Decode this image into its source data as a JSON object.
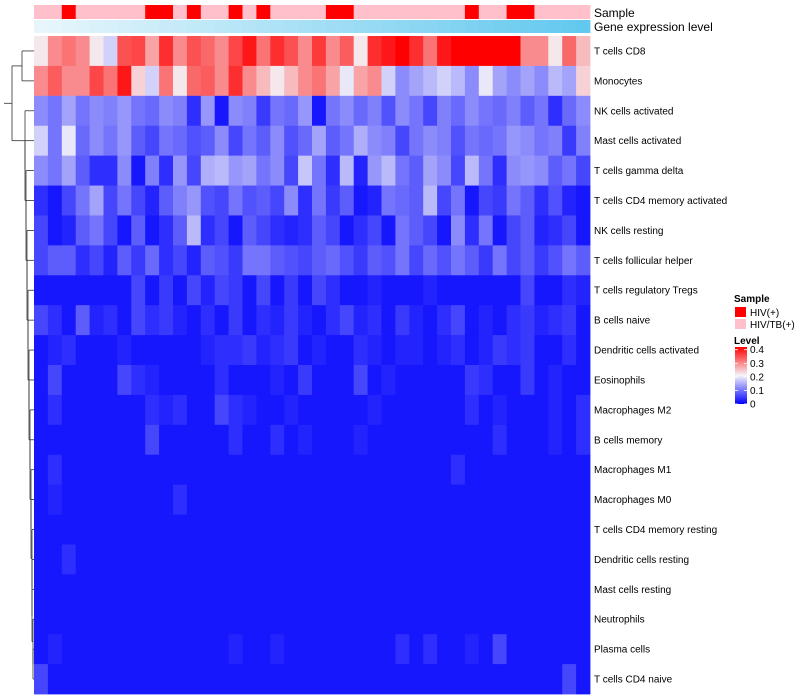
{
  "chart_data": {
    "type": "heatmap",
    "annotations": {
      "sample_label": "Sample",
      "expression_label": "Gene expression level"
    },
    "legend": {
      "sample_title": "Sample",
      "sample_entries": [
        {
          "label": "HIV(+)",
          "color": "#ff0000"
        },
        {
          "label": "HIV/TB(+)",
          "color": "#ffc0cb"
        }
      ],
      "level_title": "Level",
      "level_ticks": [
        "0.4",
        "0.3",
        "0.2",
        "0.1",
        "0"
      ],
      "level_tick_values": [
        0.4,
        0.3,
        0.2,
        0.1,
        0
      ],
      "level_range": [
        0,
        0.42
      ]
    },
    "colors": {
      "low": "#0000ff",
      "mid": "#f4f4f8",
      "high": "#ff0000",
      "hiv": "#ff0000",
      "hivtb": "#ffc0cb",
      "expr_low": "#e8f6fc",
      "expr_high": "#63c8ee",
      "dendrogram": "#333333"
    },
    "sample_groups": [
      1,
      1,
      0,
      1,
      1,
      1,
      1,
      1,
      0,
      0,
      1,
      0,
      1,
      1,
      0,
      1,
      0,
      1,
      1,
      1,
      1,
      0,
      0,
      1,
      1,
      1,
      1,
      1,
      1,
      1,
      1,
      0,
      1,
      1,
      0,
      0,
      1,
      1,
      1,
      1
    ],
    "rows": [
      "T cells CD8",
      "Monocytes",
      "NK cells activated",
      "Mast cells activated",
      "T cells gamma delta",
      "T cells CD4 memory activated",
      "NK cells resting",
      "T cells follicular helper",
      "T cells regulatory  Tregs",
      "B cells naive",
      "Dendritic cells activated",
      "Eosinophils",
      "Macrophages M2",
      "B cells memory",
      "Macrophages M1",
      "Macrophages M0",
      "T cells CD4 memory resting",
      "Dendritic cells resting",
      "Mast cells resting",
      "Neutrophils",
      "Plasma cells",
      "T cells CD4 naive"
    ],
    "values": [
      [
        0.22,
        0.3,
        0.32,
        0.3,
        0.22,
        0.18,
        0.35,
        0.36,
        0.28,
        0.38,
        0.3,
        0.35,
        0.33,
        0.3,
        0.36,
        0.4,
        0.32,
        0.38,
        0.35,
        0.3,
        0.37,
        0.3,
        0.34,
        0.22,
        0.38,
        0.4,
        0.42,
        0.38,
        0.32,
        0.4,
        0.42,
        0.42,
        0.42,
        0.42,
        0.42,
        0.3,
        0.3,
        0.22,
        0.33,
        0.26
      ],
      [
        0.3,
        0.34,
        0.3,
        0.3,
        0.36,
        0.32,
        0.4,
        0.24,
        0.18,
        0.32,
        0.22,
        0.33,
        0.34,
        0.3,
        0.38,
        0.3,
        0.26,
        0.22,
        0.26,
        0.3,
        0.32,
        0.28,
        0.2,
        0.28,
        0.3,
        0.18,
        0.12,
        0.14,
        0.16,
        0.18,
        0.16,
        0.12,
        0.2,
        0.14,
        0.12,
        0.14,
        0.12,
        0.16,
        0.14,
        0.24
      ],
      [
        0.12,
        0.1,
        0.14,
        0.1,
        0.12,
        0.11,
        0.13,
        0.1,
        0.09,
        0.12,
        0.11,
        0.04,
        0.13,
        0.02,
        0.12,
        0.11,
        0.05,
        0.1,
        0.09,
        0.13,
        0.02,
        0.1,
        0.12,
        0.09,
        0.11,
        0.07,
        0.12,
        0.1,
        0.06,
        0.11,
        0.09,
        0.12,
        0.1,
        0.09,
        0.11,
        0.08,
        0.1,
        0.04,
        0.09,
        0.12
      ],
      [
        0.18,
        0.1,
        0.2,
        0.09,
        0.12,
        0.1,
        0.13,
        0.08,
        0.06,
        0.1,
        0.09,
        0.07,
        0.08,
        0.12,
        0.06,
        0.1,
        0.08,
        0.12,
        0.07,
        0.09,
        0.14,
        0.08,
        0.1,
        0.15,
        0.12,
        0.11,
        0.06,
        0.1,
        0.12,
        0.11,
        0.07,
        0.1,
        0.09,
        0.1,
        0.13,
        0.12,
        0.1,
        0.11,
        0.05,
        0.11
      ],
      [
        0.12,
        0.1,
        0.14,
        0.08,
        0.04,
        0.04,
        0.12,
        0.02,
        0.11,
        0.04,
        0.13,
        0.06,
        0.15,
        0.16,
        0.13,
        0.14,
        0.1,
        0.12,
        0.06,
        0.17,
        0.1,
        0.04,
        0.16,
        0.03,
        0.13,
        0.16,
        0.1,
        0.08,
        0.14,
        0.12,
        0.06,
        0.16,
        0.1,
        0.04,
        0.12,
        0.13,
        0.12,
        0.08,
        0.1,
        0.06
      ],
      [
        0.04,
        0.02,
        0.06,
        0.1,
        0.14,
        0.06,
        0.1,
        0.06,
        0.03,
        0.08,
        0.11,
        0.13,
        0.07,
        0.06,
        0.1,
        0.07,
        0.08,
        0.06,
        0.12,
        0.04,
        0.1,
        0.05,
        0.08,
        0.02,
        0.03,
        0.1,
        0.09,
        0.08,
        0.16,
        0.06,
        0.1,
        0.02,
        0.06,
        0.05,
        0.1,
        0.08,
        0.04,
        0.07,
        0.03,
        0.02
      ],
      [
        0.06,
        0.02,
        0.03,
        0.08,
        0.1,
        0.06,
        0.02,
        0.08,
        0.02,
        0.04,
        0.08,
        0.16,
        0.04,
        0.06,
        0.02,
        0.08,
        0.06,
        0.04,
        0.03,
        0.04,
        0.08,
        0.06,
        0.02,
        0.04,
        0.06,
        0.02,
        0.1,
        0.08,
        0.06,
        0.02,
        0.12,
        0.04,
        0.1,
        0.02,
        0.06,
        0.08,
        0.03,
        0.04,
        0.06,
        0.02
      ],
      [
        0.06,
        0.08,
        0.08,
        0.04,
        0.06,
        0.03,
        0.08,
        0.05,
        0.09,
        0.04,
        0.06,
        0.03,
        0.08,
        0.07,
        0.05,
        0.1,
        0.1,
        0.08,
        0.07,
        0.06,
        0.08,
        0.09,
        0.07,
        0.05,
        0.08,
        0.07,
        0.1,
        0.06,
        0.09,
        0.07,
        0.1,
        0.08,
        0.05,
        0.1,
        0.06,
        0.08,
        0.05,
        0.07,
        0.1,
        0.08
      ],
      [
        0.02,
        0.02,
        0.02,
        0.02,
        0.02,
        0.02,
        0.02,
        0.06,
        0.02,
        0.05,
        0.02,
        0.06,
        0.03,
        0.06,
        0.05,
        0.02,
        0.06,
        0.02,
        0.05,
        0.02,
        0.06,
        0.04,
        0.02,
        0.02,
        0.03,
        0.02,
        0.02,
        0.02,
        0.03,
        0.02,
        0.02,
        0.02,
        0.02,
        0.02,
        0.02,
        0.06,
        0.02,
        0.02,
        0.04,
        0.03
      ],
      [
        0.06,
        0.04,
        0.02,
        0.08,
        0.03,
        0.04,
        0.02,
        0.06,
        0.04,
        0.05,
        0.03,
        0.02,
        0.04,
        0.02,
        0.05,
        0.02,
        0.04,
        0.03,
        0.05,
        0.03,
        0.02,
        0.04,
        0.06,
        0.03,
        0.04,
        0.02,
        0.05,
        0.03,
        0.02,
        0.04,
        0.06,
        0.02,
        0.03,
        0.02,
        0.04,
        0.05,
        0.03,
        0.04,
        0.05,
        0.02
      ],
      [
        0.02,
        0.03,
        0.04,
        0.02,
        0.02,
        0.02,
        0.03,
        0.02,
        0.02,
        0.02,
        0.02,
        0.02,
        0.03,
        0.04,
        0.04,
        0.05,
        0.03,
        0.04,
        0.05,
        0.02,
        0.03,
        0.02,
        0.02,
        0.04,
        0.03,
        0.02,
        0.03,
        0.03,
        0.02,
        0.03,
        0.04,
        0.02,
        0.03,
        0.05,
        0.04,
        0.05,
        0.02,
        0.02,
        0.04,
        0.02
      ],
      [
        0.02,
        0.06,
        0.02,
        0.02,
        0.02,
        0.02,
        0.06,
        0.04,
        0.03,
        0.02,
        0.02,
        0.02,
        0.02,
        0.04,
        0.02,
        0.02,
        0.02,
        0.03,
        0.02,
        0.05,
        0.02,
        0.02,
        0.02,
        0.06,
        0.02,
        0.03,
        0.02,
        0.02,
        0.02,
        0.02,
        0.02,
        0.05,
        0.04,
        0.02,
        0.02,
        0.05,
        0.02,
        0.03,
        0.02,
        0.02
      ],
      [
        0.02,
        0.04,
        0.02,
        0.02,
        0.02,
        0.02,
        0.02,
        0.02,
        0.04,
        0.03,
        0.04,
        0.02,
        0.02,
        0.06,
        0.04,
        0.03,
        0.02,
        0.02,
        0.03,
        0.02,
        0.02,
        0.02,
        0.02,
        0.02,
        0.03,
        0.02,
        0.02,
        0.02,
        0.02,
        0.02,
        0.02,
        0.04,
        0.02,
        0.03,
        0.02,
        0.02,
        0.02,
        0.03,
        0.02,
        0.04
      ],
      [
        0.02,
        0.02,
        0.02,
        0.02,
        0.02,
        0.02,
        0.02,
        0.02,
        0.06,
        0.02,
        0.02,
        0.02,
        0.02,
        0.02,
        0.04,
        0.02,
        0.02,
        0.04,
        0.02,
        0.03,
        0.02,
        0.02,
        0.02,
        0.03,
        0.02,
        0.02,
        0.02,
        0.02,
        0.02,
        0.02,
        0.02,
        0.02,
        0.02,
        0.04,
        0.02,
        0.02,
        0.02,
        0.03,
        0.02,
        0.04
      ],
      [
        0.02,
        0.04,
        0.02,
        0.02,
        0.02,
        0.02,
        0.02,
        0.02,
        0.02,
        0.02,
        0.02,
        0.02,
        0.02,
        0.02,
        0.02,
        0.02,
        0.02,
        0.02,
        0.02,
        0.02,
        0.02,
        0.02,
        0.02,
        0.02,
        0.02,
        0.02,
        0.02,
        0.02,
        0.02,
        0.02,
        0.04,
        0.02,
        0.02,
        0.02,
        0.02,
        0.02,
        0.02,
        0.02,
        0.02,
        0.02
      ],
      [
        0.02,
        0.03,
        0.02,
        0.02,
        0.02,
        0.02,
        0.02,
        0.02,
        0.02,
        0.02,
        0.04,
        0.02,
        0.02,
        0.02,
        0.02,
        0.02,
        0.02,
        0.02,
        0.02,
        0.02,
        0.02,
        0.02,
        0.02,
        0.02,
        0.02,
        0.02,
        0.02,
        0.02,
        0.02,
        0.02,
        0.02,
        0.02,
        0.02,
        0.02,
        0.02,
        0.02,
        0.02,
        0.02,
        0.02,
        0.02
      ],
      [
        0.02,
        0.02,
        0.02,
        0.02,
        0.02,
        0.02,
        0.02,
        0.02,
        0.02,
        0.02,
        0.02,
        0.02,
        0.02,
        0.02,
        0.02,
        0.02,
        0.02,
        0.02,
        0.02,
        0.02,
        0.02,
        0.02,
        0.02,
        0.02,
        0.02,
        0.02,
        0.02,
        0.02,
        0.02,
        0.02,
        0.02,
        0.02,
        0.02,
        0.02,
        0.02,
        0.02,
        0.02,
        0.02,
        0.02,
        0.02
      ],
      [
        0.02,
        0.02,
        0.04,
        0.02,
        0.02,
        0.02,
        0.02,
        0.02,
        0.02,
        0.02,
        0.02,
        0.02,
        0.02,
        0.02,
        0.02,
        0.02,
        0.02,
        0.02,
        0.02,
        0.02,
        0.02,
        0.02,
        0.02,
        0.02,
        0.02,
        0.02,
        0.02,
        0.02,
        0.02,
        0.02,
        0.02,
        0.02,
        0.02,
        0.02,
        0.02,
        0.02,
        0.02,
        0.02,
        0.02,
        0.02
      ],
      [
        0.02,
        0.02,
        0.02,
        0.02,
        0.02,
        0.02,
        0.02,
        0.02,
        0.02,
        0.02,
        0.02,
        0.02,
        0.02,
        0.02,
        0.02,
        0.02,
        0.02,
        0.02,
        0.02,
        0.02,
        0.02,
        0.02,
        0.02,
        0.02,
        0.02,
        0.02,
        0.02,
        0.02,
        0.02,
        0.02,
        0.02,
        0.02,
        0.02,
        0.02,
        0.02,
        0.02,
        0.02,
        0.02,
        0.02,
        0.02
      ],
      [
        0.02,
        0.02,
        0.02,
        0.02,
        0.02,
        0.02,
        0.02,
        0.02,
        0.02,
        0.02,
        0.02,
        0.02,
        0.02,
        0.02,
        0.02,
        0.02,
        0.02,
        0.02,
        0.02,
        0.02,
        0.02,
        0.02,
        0.02,
        0.02,
        0.02,
        0.02,
        0.02,
        0.02,
        0.02,
        0.02,
        0.02,
        0.02,
        0.02,
        0.02,
        0.02,
        0.02,
        0.02,
        0.02,
        0.02,
        0.02
      ],
      [
        0.02,
        0.03,
        0.02,
        0.02,
        0.02,
        0.02,
        0.02,
        0.02,
        0.02,
        0.02,
        0.02,
        0.02,
        0.02,
        0.02,
        0.03,
        0.02,
        0.02,
        0.03,
        0.02,
        0.02,
        0.02,
        0.02,
        0.02,
        0.02,
        0.02,
        0.02,
        0.04,
        0.02,
        0.04,
        0.02,
        0.02,
        0.03,
        0.02,
        0.06,
        0.02,
        0.02,
        0.02,
        0.02,
        0.02,
        0.02
      ],
      [
        0.06,
        0.02,
        0.02,
        0.02,
        0.02,
        0.02,
        0.02,
        0.02,
        0.02,
        0.02,
        0.02,
        0.02,
        0.02,
        0.02,
        0.02,
        0.02,
        0.02,
        0.02,
        0.02,
        0.02,
        0.02,
        0.02,
        0.02,
        0.02,
        0.02,
        0.02,
        0.02,
        0.02,
        0.02,
        0.02,
        0.02,
        0.02,
        0.02,
        0.02,
        0.02,
        0.02,
        0.02,
        0.02,
        0.06,
        0.02
      ]
    ]
  }
}
